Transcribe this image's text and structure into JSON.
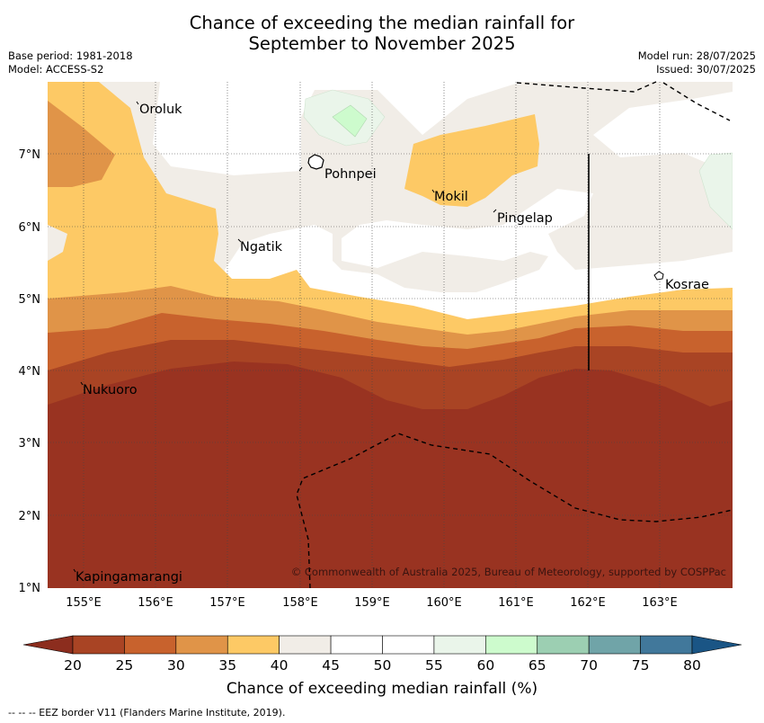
{
  "title_line1": "Chance of exceeding the median rainfall for",
  "title_line2": "September to November 2025",
  "base_period": "Base period: 1981-2018",
  "model": "Model: ACCESS-S2",
  "model_run": "Model run: 28/07/2025",
  "issued": "Issued: 30/07/2025",
  "lon_labels": [
    "155°E",
    "156°E",
    "157°E",
    "158°E",
    "159°E",
    "160°E",
    "161°E",
    "162°E",
    "163°E"
  ],
  "lat_labels": [
    "7°N",
    "6°N",
    "5°N",
    "4°N",
    "3°N",
    "2°N",
    "1°N"
  ],
  "places": [
    "Oroluk",
    "Pohnpei",
    "Mokil",
    "Pingelap",
    "Ngatik",
    "Kosrae",
    "Nukuoro",
    "Kapingamarangi"
  ],
  "copyright": "© Commonwealth of Australia 2025, Bureau of Meteorology, supported by COSPPac",
  "colorbar": {
    "ticks": [
      "20",
      "25",
      "30",
      "35",
      "40",
      "45",
      "50",
      "55",
      "60",
      "65",
      "70",
      "75",
      "80"
    ],
    "colors": [
      "#a94424",
      "#c8622d",
      "#e09448",
      "#fdc965",
      "#f1ede7",
      "#ffffff",
      "#ffffff",
      "#eaf5ea",
      "#cdfbcd",
      "#9ccfb2",
      "#70a4a8",
      "#41789b"
    ],
    "under_color": "#8c2d1e",
    "over_color": "#1a5585",
    "label": "Chance of exceeding median rainfall (%)"
  },
  "footer": "--  --  -- EEZ border V11 (Flanders Marine Institute, 2019)."
}
